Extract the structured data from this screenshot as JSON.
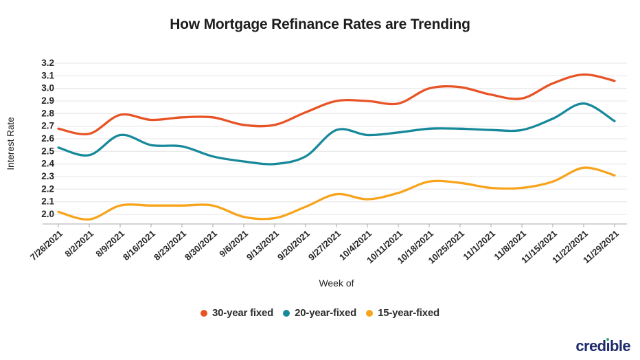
{
  "title": "How Mortgage Refinance Rates are Trending",
  "x_axis_label": "Week of",
  "y_axis_label": "Interest Rate",
  "y_ticks": [
    "3.2",
    "3.1",
    "3.0",
    "2.9",
    "2.8",
    "2.7",
    "2.6",
    "2.5",
    "2.4",
    "2.3",
    "2.2",
    "2.1",
    "2.0"
  ],
  "footer": {
    "logo_text": "credible",
    "logo_pre": "cred",
    "logo_i_dotless": "ı",
    "logo_post": "ble",
    "logo_color": "#1f2c6e",
    "logo_dot_color": "#2fae74"
  },
  "colors": {
    "gridline": "#e4e4e4",
    "axis_line": "#a8a8a8",
    "tick_text": "#262626",
    "title_text": "#1d1d1f"
  },
  "chart_data": {
    "type": "line",
    "title": "How Mortgage Refinance Rates are Trending",
    "xlabel": "Week of",
    "ylabel": "Interest Rate",
    "ylim": [
      2.0,
      3.2
    ],
    "y_tick_step": 0.1,
    "grid": true,
    "legend_position": "bottom",
    "categories": [
      "7/26/2021",
      "8/2/2021",
      "8/9/2021",
      "8/16/2021",
      "8/23/2021",
      "8/30/2021",
      "9/6/2021",
      "9/13/2021",
      "9/20/2021",
      "9/27/2021",
      "10/4/2021",
      "10/11/2021",
      "10/18/2021",
      "10/25/2021",
      "11/1/2021",
      "11/8/2021",
      "11/15/2021",
      "11/22/2021",
      "11/29/2021"
    ],
    "series": [
      {
        "name": "30-year fixed",
        "color": "#e85325",
        "values": [
          2.68,
          2.64,
          2.79,
          2.75,
          2.77,
          2.77,
          2.71,
          2.71,
          2.81,
          2.9,
          2.9,
          2.88,
          3.0,
          3.01,
          2.95,
          2.92,
          3.04,
          3.11,
          3.06
        ]
      },
      {
        "name": "20-year-fixed",
        "color": "#17899b",
        "values": [
          2.53,
          2.47,
          2.63,
          2.55,
          2.54,
          2.46,
          2.42,
          2.4,
          2.46,
          2.67,
          2.63,
          2.65,
          2.68,
          2.68,
          2.67,
          2.67,
          2.76,
          2.88,
          2.74
        ]
      },
      {
        "name": "15-year-fixed",
        "color": "#f7a41c",
        "values": [
          2.02,
          1.96,
          2.07,
          2.07,
          2.07,
          2.07,
          1.98,
          1.97,
          2.06,
          2.16,
          2.12,
          2.17,
          2.26,
          2.25,
          2.21,
          2.21,
          2.26,
          2.37,
          2.31
        ]
      }
    ]
  }
}
